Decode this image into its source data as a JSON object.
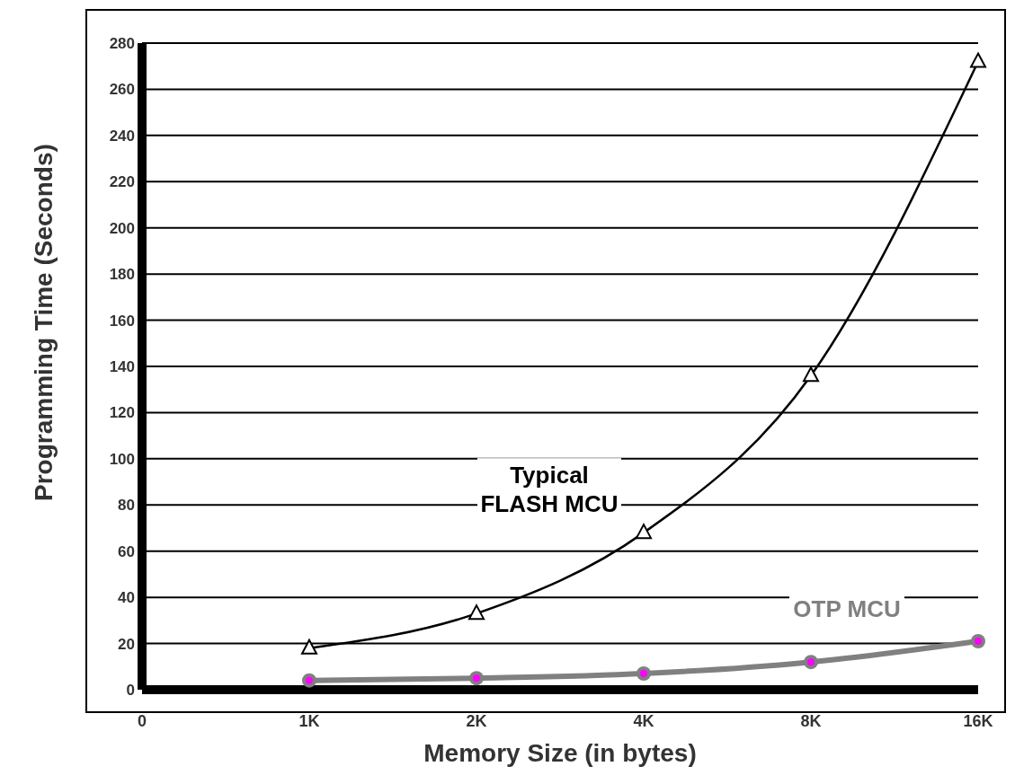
{
  "chart_data": {
    "type": "line",
    "xlabel": "Memory Size (in bytes)",
    "ylabel": "Programming Time (Seconds)",
    "categories": [
      "0",
      "1K",
      "2K",
      "4K",
      "8K",
      "16K"
    ],
    "series": [
      {
        "name": "Typical FLASH MCU",
        "color": "#000000",
        "marker": "triangle",
        "values": [
          null,
          18,
          33,
          68,
          136,
          272
        ]
      },
      {
        "name": "OTP MCU",
        "color": "#808080",
        "marker": "circle",
        "values": [
          null,
          4,
          5,
          7,
          12,
          21
        ]
      }
    ],
    "ylim": [
      0,
      280
    ],
    "yticks": [
      0,
      20,
      40,
      60,
      80,
      100,
      120,
      140,
      160,
      180,
      200,
      220,
      240,
      260,
      280
    ],
    "grid": "y",
    "legend": false
  }
}
